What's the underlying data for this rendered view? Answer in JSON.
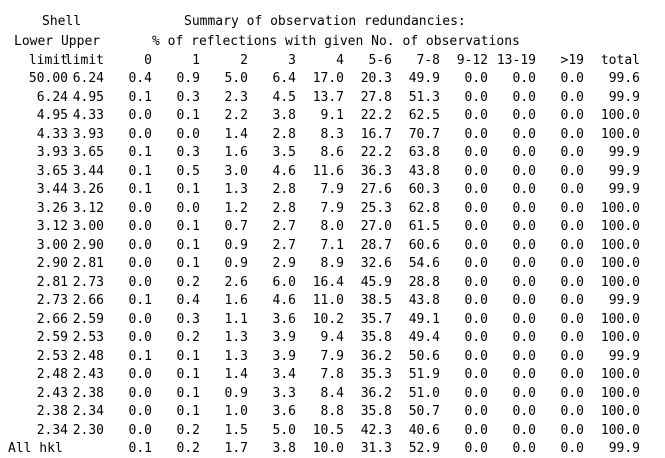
{
  "header": {
    "shell": "Shell",
    "lower_upper": "Lower Upper",
    "title": "Summary of observation redundancies:",
    "subtitle": "% of reflections with given No. of observations"
  },
  "columns": [
    "limit",
    "limit",
    "0",
    "1",
    "2",
    "3",
    "4",
    "5-6",
    "7-8",
    "9-12",
    "13-19",
    ">19",
    "total"
  ],
  "rows": [
    [
      "50.00",
      "6.24",
      "0.4",
      "0.9",
      "5.0",
      "6.4",
      "17.0",
      "20.3",
      "49.9",
      "0.0",
      "0.0",
      "0.0",
      "99.6"
    ],
    [
      "6.24",
      "4.95",
      "0.1",
      "0.3",
      "2.3",
      "4.5",
      "13.7",
      "27.8",
      "51.3",
      "0.0",
      "0.0",
      "0.0",
      "99.9"
    ],
    [
      "4.95",
      "4.33",
      "0.0",
      "0.1",
      "2.2",
      "3.8",
      "9.1",
      "22.2",
      "62.5",
      "0.0",
      "0.0",
      "0.0",
      "100.0"
    ],
    [
      "4.33",
      "3.93",
      "0.0",
      "0.0",
      "1.4",
      "2.8",
      "8.3",
      "16.7",
      "70.7",
      "0.0",
      "0.0",
      "0.0",
      "100.0"
    ],
    [
      "3.93",
      "3.65",
      "0.1",
      "0.3",
      "1.6",
      "3.5",
      "8.6",
      "22.2",
      "63.8",
      "0.0",
      "0.0",
      "0.0",
      "99.9"
    ],
    [
      "3.65",
      "3.44",
      "0.1",
      "0.5",
      "3.0",
      "4.6",
      "11.6",
      "36.3",
      "43.8",
      "0.0",
      "0.0",
      "0.0",
      "99.9"
    ],
    [
      "3.44",
      "3.26",
      "0.1",
      "0.1",
      "1.3",
      "2.8",
      "7.9",
      "27.6",
      "60.3",
      "0.0",
      "0.0",
      "0.0",
      "99.9"
    ],
    [
      "3.26",
      "3.12",
      "0.0",
      "0.0",
      "1.2",
      "2.8",
      "7.9",
      "25.3",
      "62.8",
      "0.0",
      "0.0",
      "0.0",
      "100.0"
    ],
    [
      "3.12",
      "3.00",
      "0.0",
      "0.1",
      "0.7",
      "2.7",
      "8.0",
      "27.0",
      "61.5",
      "0.0",
      "0.0",
      "0.0",
      "100.0"
    ],
    [
      "3.00",
      "2.90",
      "0.0",
      "0.1",
      "0.9",
      "2.7",
      "7.1",
      "28.7",
      "60.6",
      "0.0",
      "0.0",
      "0.0",
      "100.0"
    ],
    [
      "2.90",
      "2.81",
      "0.0",
      "0.1",
      "0.9",
      "2.9",
      "8.9",
      "32.6",
      "54.6",
      "0.0",
      "0.0",
      "0.0",
      "100.0"
    ],
    [
      "2.81",
      "2.73",
      "0.0",
      "0.2",
      "2.6",
      "6.0",
      "16.4",
      "45.9",
      "28.8",
      "0.0",
      "0.0",
      "0.0",
      "100.0"
    ],
    [
      "2.73",
      "2.66",
      "0.1",
      "0.4",
      "1.6",
      "4.6",
      "11.0",
      "38.5",
      "43.8",
      "0.0",
      "0.0",
      "0.0",
      "99.9"
    ],
    [
      "2.66",
      "2.59",
      "0.0",
      "0.3",
      "1.1",
      "3.6",
      "10.2",
      "35.7",
      "49.1",
      "0.0",
      "0.0",
      "0.0",
      "100.0"
    ],
    [
      "2.59",
      "2.53",
      "0.0",
      "0.2",
      "1.3",
      "3.9",
      "9.4",
      "35.8",
      "49.4",
      "0.0",
      "0.0",
      "0.0",
      "100.0"
    ],
    [
      "2.53",
      "2.48",
      "0.1",
      "0.1",
      "1.3",
      "3.9",
      "7.9",
      "36.2",
      "50.6",
      "0.0",
      "0.0",
      "0.0",
      "99.9"
    ],
    [
      "2.48",
      "2.43",
      "0.0",
      "0.1",
      "1.4",
      "3.4",
      "7.8",
      "35.3",
      "51.9",
      "0.0",
      "0.0",
      "0.0",
      "100.0"
    ],
    [
      "2.43",
      "2.38",
      "0.0",
      "0.1",
      "0.9",
      "3.3",
      "8.4",
      "36.2",
      "51.0",
      "0.0",
      "0.0",
      "0.0",
      "100.0"
    ],
    [
      "2.38",
      "2.34",
      "0.0",
      "0.1",
      "1.0",
      "3.6",
      "8.8",
      "35.8",
      "50.7",
      "0.0",
      "0.0",
      "0.0",
      "100.0"
    ],
    [
      "2.34",
      "2.30",
      "0.0",
      "0.2",
      "1.5",
      "5.0",
      "10.5",
      "42.3",
      "40.6",
      "0.0",
      "0.0",
      "0.0",
      "100.0"
    ]
  ],
  "summary_row": [
    "All hkl",
    "0.1",
    "0.2",
    "1.7",
    "3.8",
    "10.0",
    "31.3",
    "52.9",
    "0.0",
    "0.0",
    "0.0",
    "99.9"
  ]
}
